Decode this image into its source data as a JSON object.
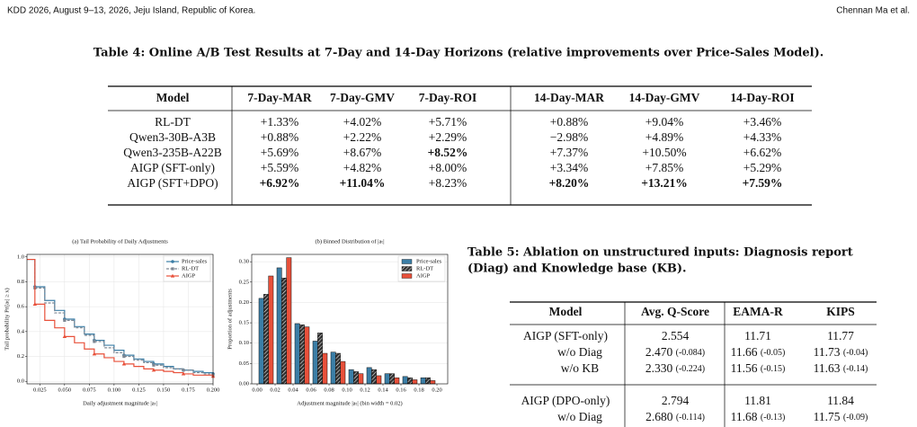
{
  "header": {
    "left": "KDD 2026, August 9–13, 2026, Jeju Island, Republic of Korea.",
    "right": "Chennan Ma et al."
  },
  "table4": {
    "caption": "Table 4: Online A/B Test Results at 7-Day and 14-Day Horizons (relative improvements over Price-Sales Model).",
    "header": [
      "Model",
      "7-Day-MAR",
      "7-Day-GMV",
      "7-Day-ROI",
      "14-Day-MAR",
      "14-Day-GMV",
      "14-Day-ROI"
    ],
    "rows": [
      [
        "RL-DT",
        "+1.33%",
        "+4.02%",
        "+5.71%",
        "+0.88%",
        "+9.04%",
        "+3.46%"
      ],
      [
        "Qwen3-30B-A3B",
        "+0.88%",
        "+2.22%",
        "+2.29%",
        "−2.98%",
        "+4.89%",
        "+4.33%"
      ],
      [
        "Qwen3-235B-A22B",
        "+5.69%",
        "+8.67%",
        "+8.52%",
        "+7.37%",
        "+10.50%",
        "+6.62%"
      ],
      [
        "AIGP (SFT-only)",
        "+5.59%",
        "+4.82%",
        "+8.00%",
        "+3.34%",
        "+7.85%",
        "+5.29%"
      ],
      [
        "AIGP (SFT+DPO)",
        "+6.92%",
        "+11.04%",
        "+8.23%",
        "+8.20%",
        "+13.21%",
        "+7.59%"
      ]
    ]
  },
  "table5": {
    "caption": [
      "Table 5: Ablation on unstructured inputs: Diagnosis report",
      "(Diag) and Knowledge base (KB)."
    ],
    "header": [
      "Model",
      "Avg. Q-Score",
      "EAMA-R",
      "KIPS"
    ],
    "groups": [
      [
        [
          "AIGP (SFT-only)",
          {
            "value": "2.554"
          },
          {
            "value": "11.71"
          },
          {
            "value": "11.77"
          }
        ],
        [
          "w/o Diag",
          {
            "value": "2.470",
            "delta": "(-0.084)"
          },
          {
            "value": "11.66",
            "delta": "(-0.05)"
          },
          {
            "value": "11.73",
            "delta": "(-0.04)"
          }
        ],
        [
          "w/o KB",
          {
            "value": "2.330",
            "delta": "(-0.224)"
          },
          {
            "value": "11.56",
            "delta": "(-0.15)"
          },
          {
            "value": "11.63",
            "delta": "(-0.14)"
          }
        ]
      ],
      [
        [
          "AIGP (DPO-only)",
          {
            "value": "2.794"
          },
          {
            "value": "11.81"
          },
          {
            "value": "11.84"
          }
        ],
        [
          "w/o Diag",
          {
            "value": "2.680",
            "delta": "(-0.114)"
          },
          {
            "value": "11.68",
            "delta": "(-0.13)"
          },
          {
            "value": "11.75",
            "delta": "(-0.09)"
          }
        ]
      ]
    ]
  },
  "chart_data": [
    {
      "type": "line",
      "title": "(a) Tail Probability of Daily Adjustments",
      "xlabel": "Daily adjustment magnitude |aₜ|",
      "ylabel": "Tail probability Pr(|aₜ| ≥ x)",
      "x": [
        0.012,
        0.02,
        0.03,
        0.04,
        0.05,
        0.06,
        0.07,
        0.08,
        0.09,
        0.1,
        0.11,
        0.12,
        0.13,
        0.14,
        0.15,
        0.16,
        0.17,
        0.18,
        0.19,
        0.2
      ],
      "series": [
        {
          "name": "Price-sales",
          "color": "#3b7ea6",
          "marker": "circle",
          "values": [
            0.98,
            0.76,
            0.65,
            0.57,
            0.5,
            0.44,
            0.38,
            0.33,
            0.29,
            0.25,
            0.21,
            0.18,
            0.16,
            0.14,
            0.12,
            0.1,
            0.09,
            0.08,
            0.07,
            0.06
          ]
        },
        {
          "name": "RL-DT",
          "color": "#7d8793",
          "marker": "square",
          "dashed": true,
          "values": [
            0.98,
            0.75,
            0.63,
            0.55,
            0.49,
            0.43,
            0.37,
            0.32,
            0.27,
            0.23,
            0.2,
            0.17,
            0.15,
            0.13,
            0.11,
            0.1,
            0.09,
            0.07,
            0.06,
            0.05
          ]
        },
        {
          "name": "AIGP",
          "color": "#e8503a",
          "marker": "triangle",
          "values": [
            0.98,
            0.62,
            0.49,
            0.43,
            0.36,
            0.31,
            0.26,
            0.22,
            0.19,
            0.16,
            0.14,
            0.12,
            0.1,
            0.09,
            0.08,
            0.07,
            0.06,
            0.05,
            0.05,
            0.04
          ]
        }
      ],
      "xlim": [
        0.012,
        0.2
      ],
      "ylim": [
        -0.02,
        1.02
      ],
      "xticks": [
        0.025,
        {
          "value": 0.05,
          "label": "0.050"
        },
        0.075,
        {
          "value": 0.1,
          "label": "0.100"
        },
        0.125,
        {
          "value": 0.15,
          "label": "0.150"
        },
        0.175,
        {
          "value": 0.2,
          "label": "0.200"
        }
      ],
      "yticks": [
        {
          "value": 0,
          "label": "0.0"
        },
        0.2,
        0.4,
        0.6,
        0.8,
        {
          "value": 1,
          "label": "1.0"
        }
      ],
      "grid": true,
      "legend": "upper right"
    },
    {
      "type": "bar",
      "title": "(b) Binned Distribution of |aₜ|",
      "xlabel": "Adjustment magnitude |aₜ| (bin width = 0.02)",
      "ylabel": "Proportion of adjustments",
      "x": [
        0.01,
        0.03,
        0.05,
        0.07,
        0.09,
        0.11,
        0.13,
        0.15,
        0.17,
        0.19
      ],
      "series": [
        {
          "name": "Price-sales",
          "color": "#3b7ea6",
          "values": [
            0.21,
            0.285,
            0.148,
            0.105,
            0.078,
            0.035,
            0.04,
            0.025,
            0.018,
            0.015
          ]
        },
        {
          "name": "RL-DT",
          "color": "#333333",
          "hatch": true,
          "values": [
            0.22,
            0.26,
            0.145,
            0.125,
            0.075,
            0.03,
            0.035,
            0.025,
            0.015,
            0.015
          ]
        },
        {
          "name": "AIGP",
          "color": "#e8503a",
          "values": [
            0.265,
            0.31,
            0.14,
            0.075,
            0.055,
            0.025,
            0.02,
            0.015,
            0.01,
            0.008
          ]
        }
      ],
      "xlim": [
        -0.006,
        0.212
      ],
      "ylim": [
        0,
        0.318
      ],
      "xticks": [
        {
          "value": 0,
          "label": "0.00"
        },
        0.02,
        0.04,
        0.06,
        0.08,
        {
          "value": 0.1,
          "label": "0.10"
        },
        0.12,
        0.14,
        0.16,
        0.18,
        {
          "value": 0.2,
          "label": "0.20"
        }
      ],
      "yticks": [
        {
          "value": 0,
          "label": "0.00"
        },
        0.05,
        {
          "value": 0.1,
          "label": "0.10"
        },
        0.15,
        {
          "value": 0.2,
          "label": "0.20"
        },
        0.25,
        {
          "value": 0.3,
          "label": "0.30"
        }
      ],
      "grid": true,
      "legend": "upper right"
    }
  ]
}
